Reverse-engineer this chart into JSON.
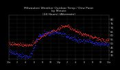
{
  "title": "Milwaukee Weather Outdoor Temp / Dew Point\nby Minute\n(24 Hours) (Alternate)",
  "title_fontsize": 3.2,
  "background_color": "#000000",
  "plot_bg_color": "#000000",
  "grid_color": "#555555",
  "temp_color": "#ff2222",
  "dew_color": "#2222ff",
  "ylim": [
    30,
    85
  ],
  "yticks": [
    35,
    40,
    45,
    50,
    55,
    60,
    65,
    70,
    75,
    80
  ],
  "ytick_labels": [
    "35",
    "40",
    "45",
    "50",
    "55",
    "60",
    "65",
    "70",
    "75",
    "80"
  ],
  "ytick_fontsize": 2.8,
  "xtick_fontsize": 2.3,
  "xtick_labels": [
    "12a",
    "2",
    "4",
    "6",
    "8",
    "10",
    "12p",
    "2",
    "4",
    "6",
    "8",
    "10",
    "12a"
  ],
  "num_points": 1440,
  "seed": 7
}
